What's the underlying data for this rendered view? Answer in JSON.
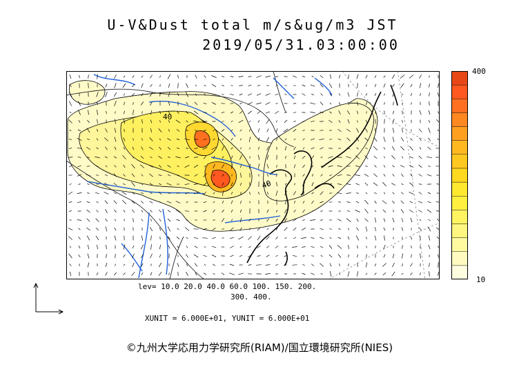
{
  "title": {
    "line1": "U-V&Dust total m/s&ug/m3 JST",
    "line2": "2019/05/31.03:00:00"
  },
  "colorbar": {
    "max_label": "400",
    "min_label": "10",
    "colors": [
      "#fffde0",
      "#fffbc0",
      "#fff9a0",
      "#fff680",
      "#fff360",
      "#fff040",
      "#ffe830",
      "#ffd820",
      "#ffc820",
      "#ffb820",
      "#ffa020",
      "#ff8820",
      "#ff7020",
      "#ff5820",
      "#e84818"
    ]
  },
  "levels": {
    "line1": "lev= 10.0 20.0 40.0 60.0 100. 150. 200.",
    "line2": "300. 400."
  },
  "units": {
    "text": "XUNIT = 6.000E+01, YUNIT = 6.000E+01"
  },
  "map": {
    "contour_labels": [
      "40",
      "40"
    ]
  },
  "credit": "©九州大学応用力学研究所(RIAM)/国立環境研究所(NIES)"
}
